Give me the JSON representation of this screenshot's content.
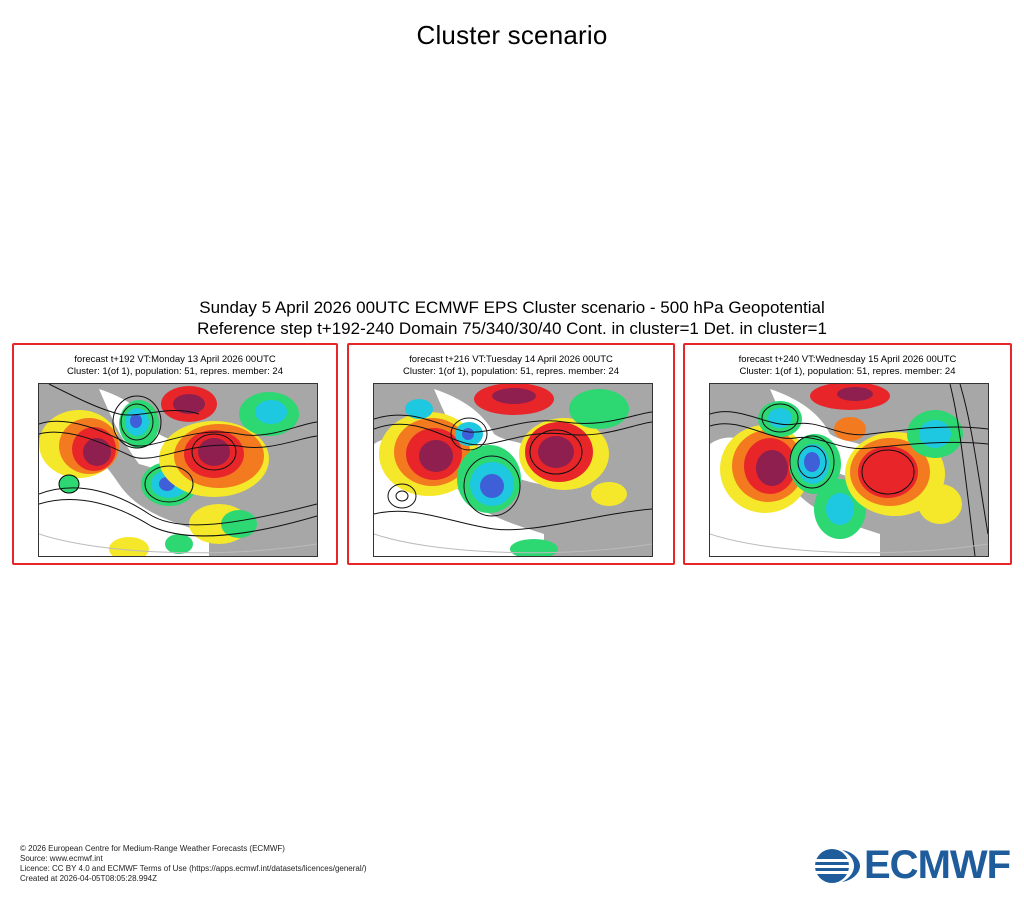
{
  "page": {
    "title": "Cluster scenario"
  },
  "plot": {
    "header_line1": "Sunday 5 April 2026 00UTC ECMWF EPS Cluster scenario - 500 hPa Geopotential",
    "header_line2": "Reference step t+192-240 Domain 75/340/30/40 Cont. in cluster=1 Det. in cluster=1"
  },
  "panels": [
    {
      "caption1": "forecast t+192 VT:Monday 13 April 2026 00UTC",
      "caption2": "Cluster: 1(of 1), population: 51, repres. member: 24"
    },
    {
      "caption1": "forecast t+216 VT:Tuesday 14 April 2026 00UTC",
      "caption2": "Cluster: 1(of 1), population: 51, repres. member: 24"
    },
    {
      "caption1": "forecast t+240 VT:Wednesday 15 April 2026 00UTC",
      "caption2": "Cluster: 1(of 1), population: 51, repres. member: 24"
    }
  ],
  "footer": {
    "copyright": "© 2026 European Centre for Medium-Range Weather Forecasts (ECMWF)",
    "source": "Source: www.ecmwf.int",
    "licence": "Licence: CC BY 4.0 and ECMWF Terms of Use (https://apps.ecmwf.int/datasets/licences/general/)",
    "created": "Created at 2026-04-05T08:05:28.994Z"
  },
  "logo": {
    "text": "ECMWF",
    "color": "#1e5c9b"
  },
  "colors": {
    "panel_border": "#e8262a",
    "land": "#a7a7a7",
    "ocean": "#ffffff",
    "anomaly_pos_strong": "#8e1f4f",
    "anomaly_pos": "#e8262a",
    "anomaly_pos_mid": "#f47a20",
    "anomaly_pos_weak": "#f5e82a",
    "anomaly_neg_weak": "#2dd873",
    "anomaly_neg": "#1ec8e0",
    "anomaly_neg_strong": "#3f5fd8"
  }
}
